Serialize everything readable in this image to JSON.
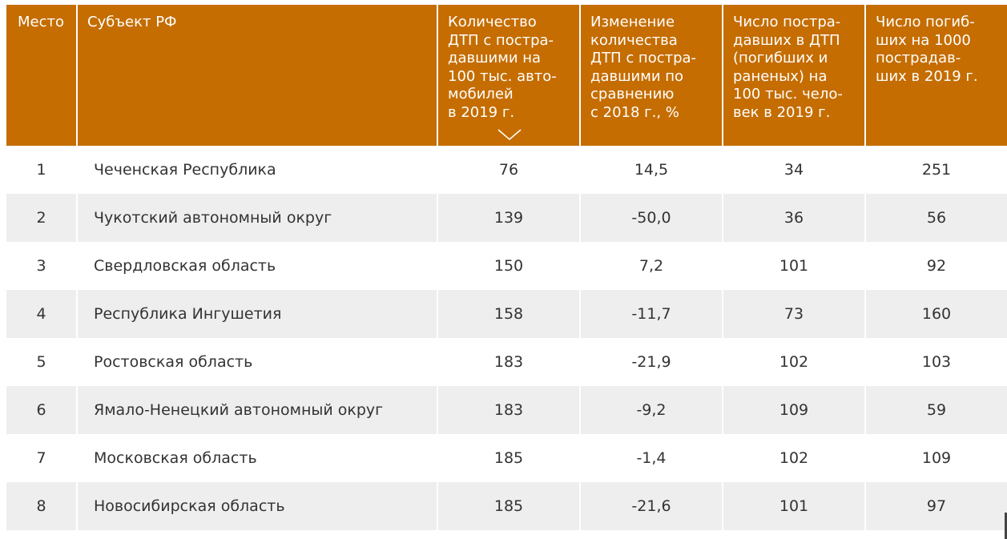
{
  "table": {
    "headers": {
      "rank": "Место",
      "region": "Субъект РФ",
      "dtp_per_100k_cars": "Количество\nДТП с постра-\nдавшими на\n100 тыс. авто-\nмобилей\nв 2019 г.",
      "change_vs_2018": "Изменение\nколичества\nДТП с постра-\nдавшими по\nсравнению\nс 2018 г., %",
      "injured_per_100k": "Число постра-\nдавших в ДТП\n(погибших и\nраненых) на\n100 тыс. чело-\nвек в 2019 г.",
      "deaths_per_1000": "Число погиб-\nших на 1000\nпострадав-\nших в 2019 г."
    },
    "sort_icon": "chevron-down-icon",
    "rows": [
      {
        "rank": "1",
        "region": "Чеченская Республика",
        "dtp": "76",
        "change": "14,5",
        "injured": "34",
        "deaths": "251"
      },
      {
        "rank": "2",
        "region": "Чукотский автономный округ",
        "dtp": "139",
        "change": "-50,0",
        "injured": "36",
        "deaths": "56"
      },
      {
        "rank": "3",
        "region": "Свердловская область",
        "dtp": "150",
        "change": "7,2",
        "injured": "101",
        "deaths": "92"
      },
      {
        "rank": "4",
        "region": "Республика Ингушетия",
        "dtp": "158",
        "change": "-11,7",
        "injured": "73",
        "deaths": "160"
      },
      {
        "rank": "5",
        "region": "Ростовская область",
        "dtp": "183",
        "change": "-21,9",
        "injured": "102",
        "deaths": "103"
      },
      {
        "rank": "6",
        "region": "Ямало-Ненецкий автономный округ",
        "dtp": "183",
        "change": "-9,2",
        "injured": "109",
        "deaths": "59"
      },
      {
        "rank": "7",
        "region": "Московская область",
        "dtp": "185",
        "change": "-1,4",
        "injured": "102",
        "deaths": "109"
      },
      {
        "rank": "8",
        "region": "Новосибирская область",
        "dtp": "185",
        "change": "-21,6",
        "injured": "101",
        "deaths": "97"
      }
    ]
  },
  "colors": {
    "header_bg": "#c56d00",
    "header_text": "#ffffff",
    "row_alt_bg": "#eeeeee",
    "text": "#333333"
  }
}
